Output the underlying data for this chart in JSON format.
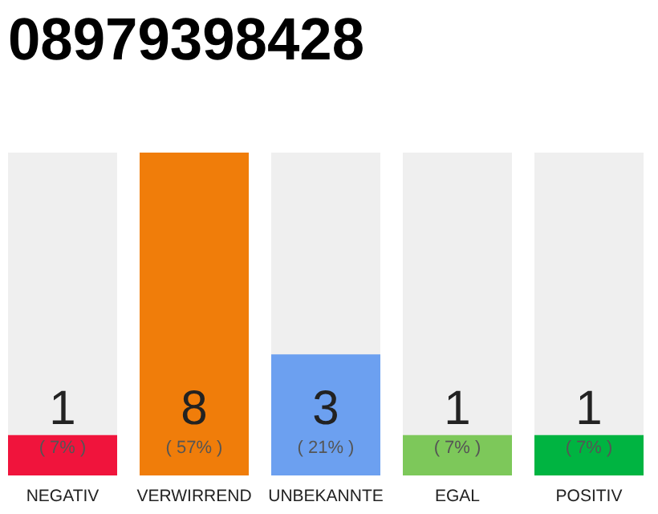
{
  "chart_data": {
    "type": "bar",
    "title": "08979398428",
    "categories": [
      "NEGATIV",
      "VERWIRREND",
      "UNBEKANNTE",
      "EGAL",
      "POSITIV"
    ],
    "values": [
      1,
      8,
      3,
      1,
      1
    ],
    "colors": [
      "#f0143c",
      "#f07d0a",
      "#6ca0f0",
      "#7dc85a",
      "#00b441"
    ],
    "data_labels": true,
    "annotations": [
      "( 7% )",
      "( 57% )",
      "( 21% )",
      "( 7% )",
      "( 7% )"
    ]
  }
}
